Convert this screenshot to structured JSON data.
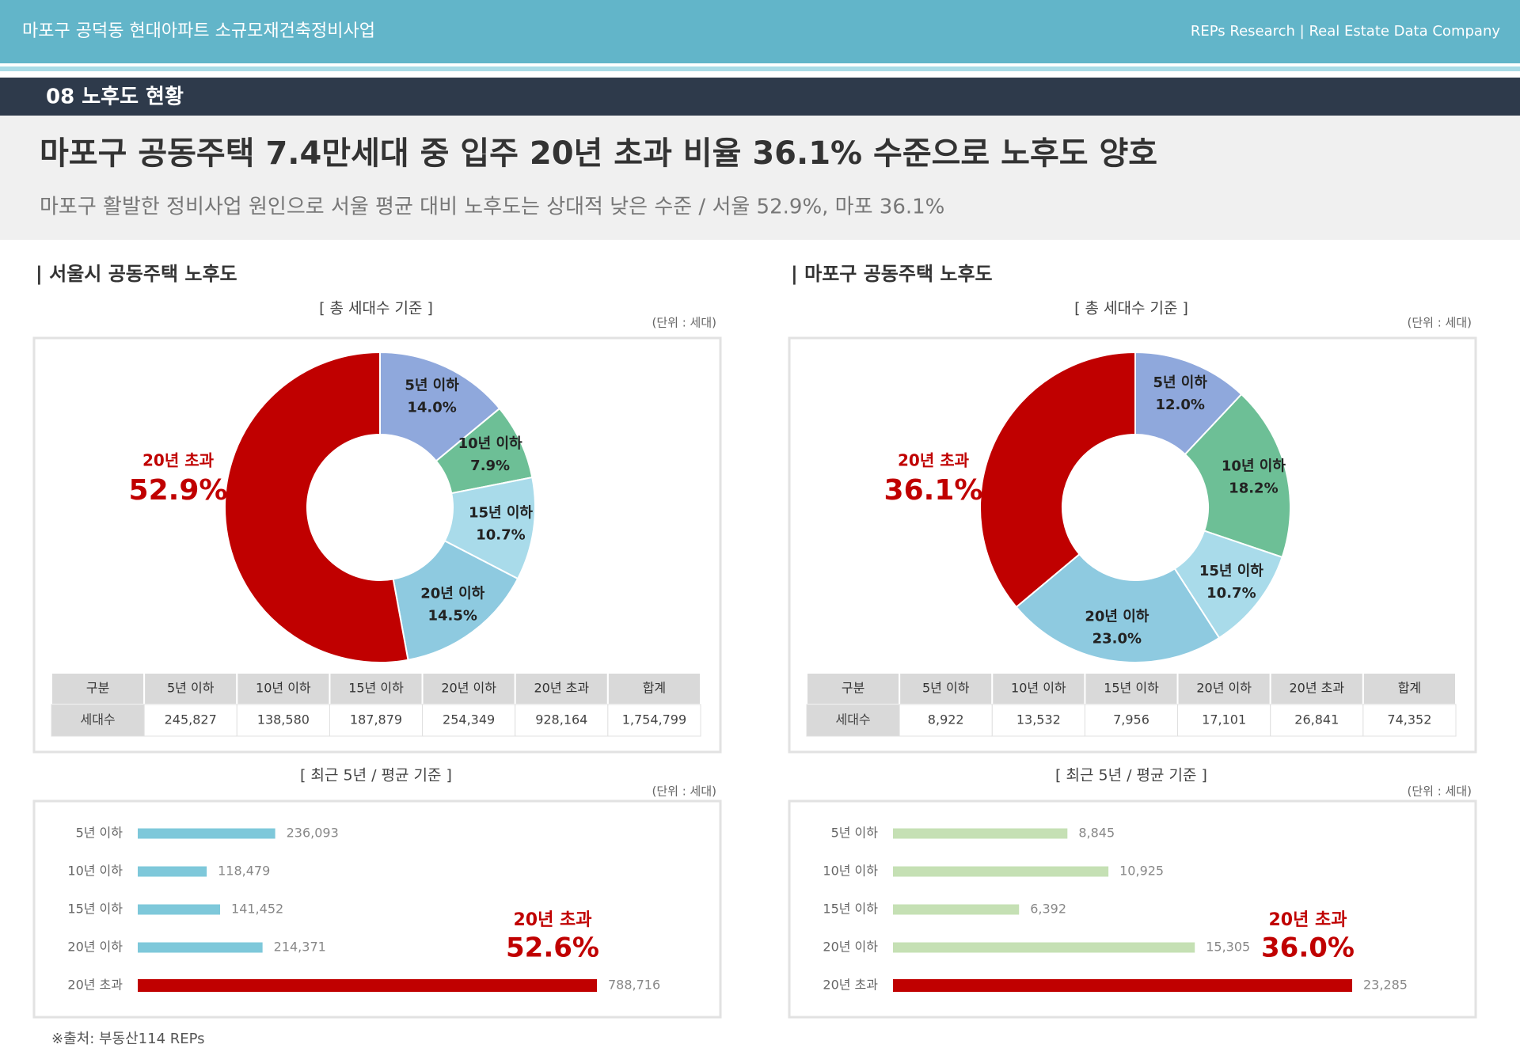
{
  "header": {
    "project": "마포구 공덕동 현대아파트 소규모재건축정비사업",
    "brand": "REPs Research | Real Estate Data Company"
  },
  "section": "08  노후도 현황",
  "headline": "마포구 공동주택 7.4만세대 중 입주 20년 초과 비율 36.1% 수준으로 노후도 양호",
  "subline": "마포구 활발한 정비사업 원인으로 서울 평균 대비 노후도는 상대적 낮은 수준 / 서울 52.9%, 마포 36.1%",
  "panels": [
    "| 서울시 공동주택 노후도",
    "| 마포구 공동주택 노후도"
  ],
  "source": "※출처: 부동산114 REPs",
  "chart_data": [
    {
      "type": "pie",
      "subtitle": "[ 총 세대수 기준 ]",
      "unit": "(단위 : 세대)",
      "categories": [
        "5년 이하",
        "10년 이하",
        "15년 이하",
        "20년 이하",
        "20년 초과"
      ],
      "values": [
        14.0,
        7.9,
        10.7,
        14.5,
        52.9
      ],
      "value_labels": [
        "14.0%",
        "7.9%",
        "10.7%",
        "14.5%",
        "52.9%"
      ],
      "colors": [
        "#8fa8dc",
        "#6dbf96",
        "#a9dbea",
        "#8ecae0",
        "#c00000"
      ],
      "table": {
        "columns": [
          "구분",
          "5년 이하",
          "10년 이하",
          "15년 이하",
          "20년 이하",
          "20년 초과",
          "합계"
        ],
        "rows": [
          [
            "세대수",
            "245,827",
            "138,580",
            "187,879",
            "254,349",
            "928,164",
            "1,754,799"
          ]
        ]
      }
    },
    {
      "type": "bar",
      "subtitle": "[ 최근 5년 / 평균 기준 ]",
      "unit": "(단위 : 세대)",
      "categories": [
        "5년 이하",
        "10년 이하",
        "15년 이하",
        "20년 이하",
        "20년 초과"
      ],
      "values": [
        236093,
        118479,
        141452,
        214371,
        788716
      ],
      "value_labels": [
        "236,093",
        "118,479",
        "141,452",
        "214,371",
        "788,716"
      ],
      "colors": [
        "#7ec8da",
        "#7ec8da",
        "#7ec8da",
        "#7ec8da",
        "#c00000"
      ],
      "annotation": [
        "20년 초과",
        "52.6%"
      ]
    },
    {
      "type": "pie",
      "subtitle": "[ 총 세대수 기준 ]",
      "unit": "(단위 : 세대)",
      "categories": [
        "5년 이하",
        "10년 이하",
        "15년 이하",
        "20년 이하",
        "20년 초과"
      ],
      "values": [
        12.0,
        18.2,
        10.7,
        23.0,
        36.1
      ],
      "value_labels": [
        "12.0%",
        "18.2%",
        "10.7%",
        "23.0%",
        "36.1%"
      ],
      "colors": [
        "#8fa8dc",
        "#6dbf96",
        "#a9dbea",
        "#8ecae0",
        "#c00000"
      ],
      "table": {
        "columns": [
          "구분",
          "5년 이하",
          "10년 이하",
          "15년 이하",
          "20년 이하",
          "20년 초과",
          "합계"
        ],
        "rows": [
          [
            "세대수",
            "8,922",
            "13,532",
            "7,956",
            "17,101",
            "26,841",
            "74,352"
          ]
        ]
      }
    },
    {
      "type": "bar",
      "subtitle": "[ 최근 5년 / 평균 기준 ]",
      "unit": "(단위 : 세대)",
      "categories": [
        "5년 이하",
        "10년 이하",
        "15년 이하",
        "20년 이하",
        "20년 초과"
      ],
      "values": [
        8845,
        10925,
        6392,
        15305,
        23285
      ],
      "value_labels": [
        "8,845",
        "10,925",
        "6,392",
        "15,305",
        "23,285"
      ],
      "colors": [
        "#c5e0b4",
        "#c5e0b4",
        "#c5e0b4",
        "#c5e0b4",
        "#c00000"
      ],
      "annotation": [
        "20년 초과",
        "36.0%"
      ]
    }
  ]
}
